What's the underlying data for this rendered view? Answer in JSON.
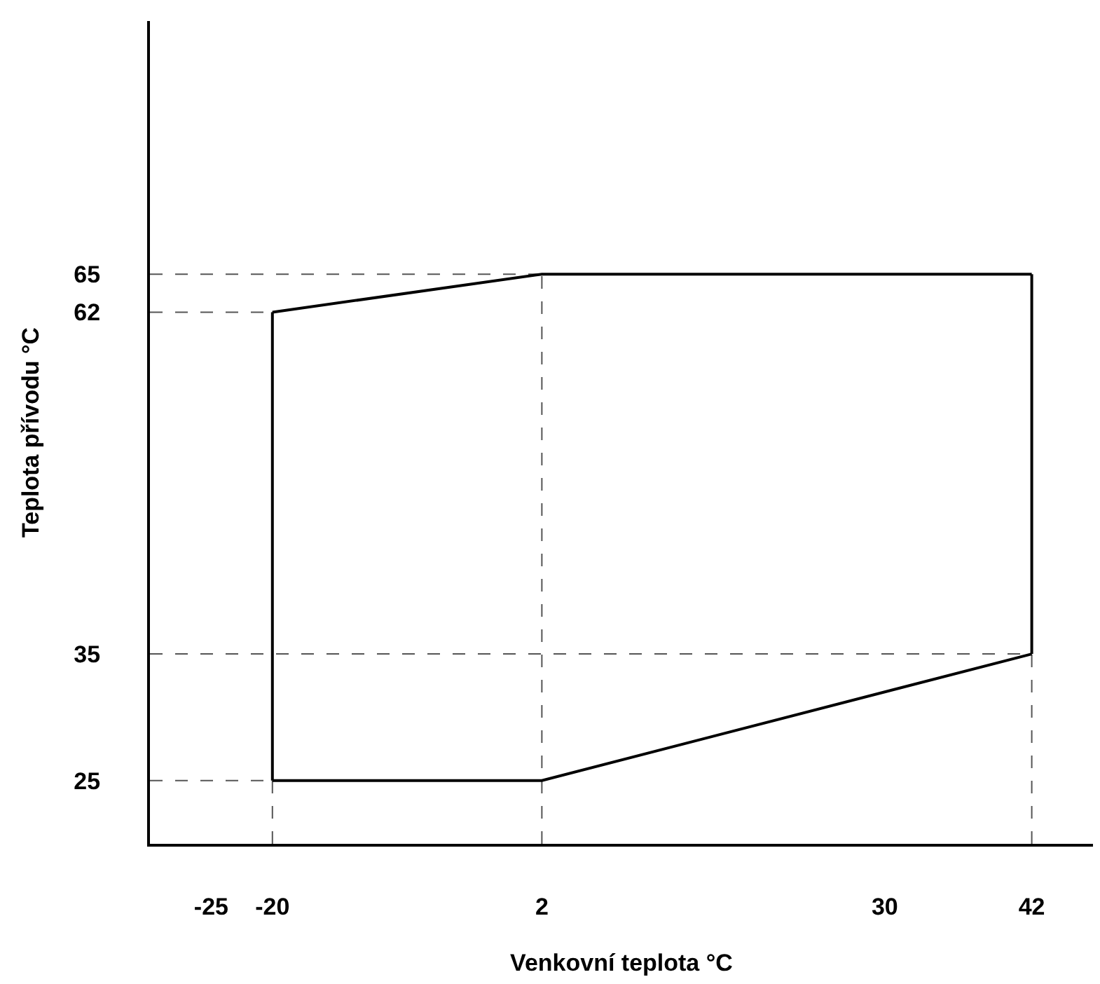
{
  "chart_data": {
    "type": "line",
    "xlabel": "Venkovní teplota °C",
    "ylabel": "Teplota přívodu °C",
    "series": [
      {
        "color": "#000000",
        "x": [
          -20,
          2,
          42
        ],
        "values": [
          25,
          25,
          35
        ]
      },
      {
        "color": "#000000",
        "x": [
          -20,
          2,
          42
        ],
        "values": [
          62,
          65,
          65
        ]
      },
      {
        "color": "#000000",
        "x": [
          -20,
          -20
        ],
        "values": [
          25,
          62
        ]
      },
      {
        "color": "#000000",
        "x": [
          42,
          42
        ],
        "values": [
          35,
          65
        ]
      }
    ],
    "xlim": [
      -30,
      47
    ],
    "xticks": [
      -25,
      -20,
      2,
      30,
      42
    ],
    "ylim": [
      20,
      85
    ],
    "yticks": [
      25,
      35,
      62,
      65
    ],
    "ref_lines": [
      {
        "axis": "y",
        "value": 25,
        "line_style": "dashed",
        "color": "#555555"
      },
      {
        "axis": "y",
        "value": 35,
        "line_style": "dashed",
        "color": "#555555"
      },
      {
        "axis": "y",
        "value": 62,
        "line_style": "dashed",
        "color": "#555555"
      },
      {
        "axis": "y",
        "value": 65,
        "line_style": "dashed",
        "color": "#555555"
      },
      {
        "axis": "x",
        "value": -20,
        "line_style": "dashed",
        "color": "#555555"
      },
      {
        "axis": "x",
        "value": 2,
        "line_style": "dashed",
        "color": "#555555"
      },
      {
        "axis": "x",
        "value": 42,
        "line_style": "dashed",
        "color": "#555555"
      }
    ],
    "marker": "none",
    "line_style": "solid"
  }
}
